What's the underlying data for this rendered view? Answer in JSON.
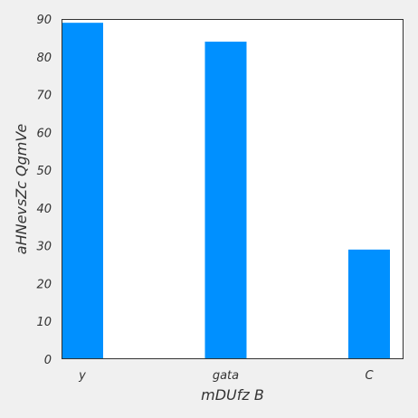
{
  "chart_data": {
    "type": "bar",
    "categories": [
      "y",
      "gata",
      "C"
    ],
    "values": [
      89,
      84,
      29
    ],
    "title": "",
    "xlabel": "mDUfz B",
    "ylabel": "aHNevsZc QgmVe",
    "ylim": [
      0,
      90
    ],
    "yticks": [
      0,
      10,
      20,
      30,
      40,
      50,
      60,
      70,
      80,
      90
    ],
    "grid": false,
    "bar_color": "#0090ff",
    "plot_background": "#ffffff",
    "figure_background": "#f0f0f0"
  }
}
